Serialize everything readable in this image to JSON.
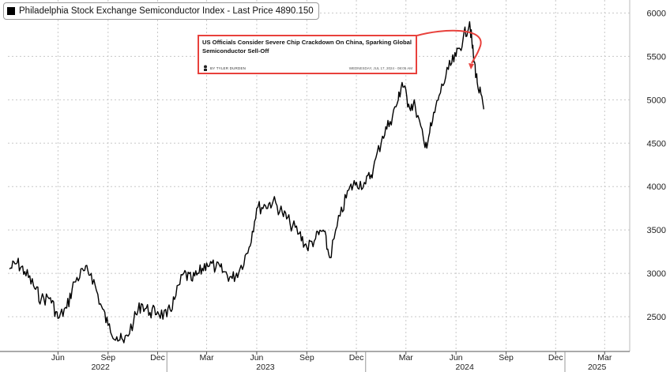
{
  "legend": {
    "label": "Philadelphia Stock Exchange Semiconductor Index - Last Price 4890.150"
  },
  "annotation": {
    "headline": "US Officials Consider Severe Chip Crackdown On China, Sparking Global Semiconductor Sell-Off",
    "author": "BY TYLER DURDEN",
    "date": "WEDNESDAY, JUL 17, 2024 - 08:05 AM",
    "border_color": "#e8413c"
  },
  "chart_data": {
    "type": "line",
    "title": "",
    "xlabel": "",
    "ylabel": "",
    "ylim": [
      2100,
      6150
    ],
    "yticks": [
      2500,
      3000,
      3500,
      4000,
      4500,
      5000,
      5500,
      6000
    ],
    "xlim": [
      "2022-03-15",
      "2025-04-30"
    ],
    "month_ticks": [
      {
        "date": "2022-06-15",
        "label": "Jun"
      },
      {
        "date": "2022-09-15",
        "label": "Sep"
      },
      {
        "date": "2022-12-15",
        "label": "Dec"
      },
      {
        "date": "2023-03-15",
        "label": "Mar"
      },
      {
        "date": "2023-06-15",
        "label": "Jun"
      },
      {
        "date": "2023-09-15",
        "label": "Sep"
      },
      {
        "date": "2023-12-15",
        "label": "Dec"
      },
      {
        "date": "2024-03-15",
        "label": "Mar"
      },
      {
        "date": "2024-06-15",
        "label": "Jun"
      },
      {
        "date": "2024-09-15",
        "label": "Sep"
      },
      {
        "date": "2024-12-15",
        "label": "Dec"
      },
      {
        "date": "2025-03-15",
        "label": "Mar"
      }
    ],
    "year_labels": [
      {
        "date": "2022-09-01",
        "label": "2022"
      },
      {
        "date": "2023-07-01",
        "label": "2023"
      },
      {
        "date": "2024-07-01",
        "label": "2024"
      },
      {
        "date": "2025-03-01",
        "label": "2025"
      }
    ],
    "year_separators": [
      "2023-01-01",
      "2024-01-01",
      "2025-01-01"
    ],
    "grid": true,
    "legend_position": "top-left",
    "series": [
      {
        "color": "#000000",
        "x": [
          "2022-03-18",
          "2022-04-01",
          "2022-04-15",
          "2022-05-01",
          "2022-05-15",
          "2022-06-01",
          "2022-06-15",
          "2022-07-01",
          "2022-07-15",
          "2022-08-01",
          "2022-08-15",
          "2022-09-01",
          "2022-09-15",
          "2022-10-01",
          "2022-10-14",
          "2022-11-01",
          "2022-11-15",
          "2022-12-01",
          "2022-12-15",
          "2023-01-01",
          "2023-01-15",
          "2023-02-01",
          "2023-02-15",
          "2023-03-01",
          "2023-03-15",
          "2023-04-01",
          "2023-04-15",
          "2023-05-01",
          "2023-05-15",
          "2023-06-01",
          "2023-06-15",
          "2023-07-01",
          "2023-07-15",
          "2023-08-01",
          "2023-08-15",
          "2023-09-01",
          "2023-09-15",
          "2023-10-01",
          "2023-10-15",
          "2023-10-27",
          "2023-11-15",
          "2023-12-01",
          "2023-12-15",
          "2024-01-01",
          "2024-01-15",
          "2024-02-01",
          "2024-02-15",
          "2024-03-01",
          "2024-03-08",
          "2024-03-20",
          "2024-04-01",
          "2024-04-19",
          "2024-05-01",
          "2024-05-15",
          "2024-06-01",
          "2024-06-15",
          "2024-06-28",
          "2024-07-10",
          "2024-07-17",
          "2024-07-24",
          "2024-08-05"
        ],
        "values": [
          3050,
          3120,
          3020,
          2860,
          2700,
          2720,
          2480,
          2600,
          2900,
          3030,
          3000,
          2650,
          2400,
          2270,
          2200,
          2450,
          2650,
          2550,
          2560,
          2500,
          2700,
          3000,
          2920,
          3000,
          3120,
          3070,
          3020,
          2940,
          3050,
          3300,
          3750,
          3780,
          3830,
          3700,
          3580,
          3460,
          3300,
          3400,
          3500,
          3180,
          3660,
          3960,
          4050,
          4030,
          4200,
          4580,
          4750,
          5000,
          5200,
          4950,
          4930,
          4450,
          4700,
          5050,
          5350,
          5500,
          5700,
          5900,
          5500,
          5200,
          4890
        ]
      }
    ]
  }
}
